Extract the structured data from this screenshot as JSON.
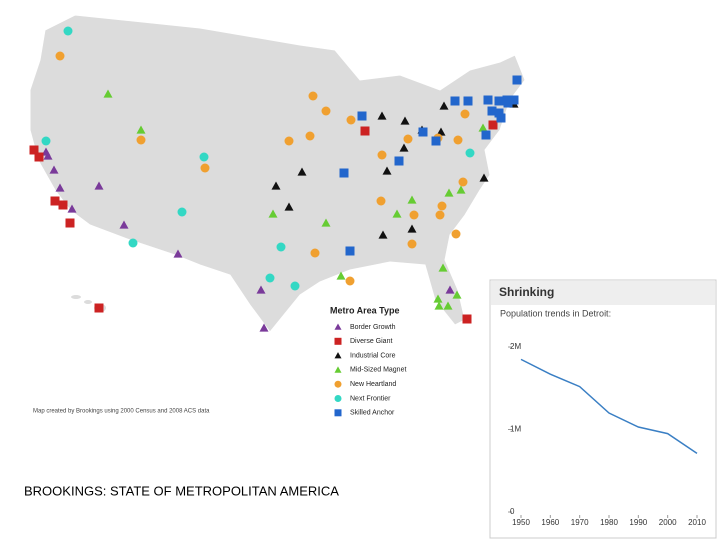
{
  "legend": {
    "title": "Metro Area Type",
    "items": [
      {
        "name": "Border Growth",
        "color": "#7a3a9a",
        "shape": "triangle"
      },
      {
        "name": "Diverse Giant",
        "color": "#cc2222",
        "shape": "square"
      },
      {
        "name": "Industrial Core",
        "color": "#111111",
        "shape": "triangle"
      },
      {
        "name": "Mid-Sized Magnet",
        "color": "#66cc33",
        "shape": "triangle"
      },
      {
        "name": "New Heartland",
        "color": "#f0a030",
        "shape": "circle"
      },
      {
        "name": "Next Frontier",
        "color": "#33d8c4",
        "shape": "circle"
      },
      {
        "name": "Skilled Anchor",
        "color": "#2266cc",
        "shape": "square"
      }
    ]
  },
  "source_note": "Map created by Brookings using 2000 Census and 2008 ACS data",
  "caption": "BROOKINGS: STATE OF METROPOLITAN AMERICA",
  "chart_data": {
    "type": "line",
    "title": "Shrinking",
    "subtitle": "Population trends in Detroit:",
    "x": [
      1950,
      1960,
      1970,
      1980,
      1990,
      2000,
      2010
    ],
    "series": [
      {
        "name": "Detroit",
        "color": "#3a7fc4",
        "values": [
          1850000,
          1670000,
          1520000,
          1200000,
          1030000,
          950000,
          710000
        ]
      }
    ],
    "xlim": [
      1950,
      2010
    ],
    "xticks": [
      1950,
      1960,
      1970,
      1980,
      1990,
      2000,
      2010
    ],
    "ylim": [
      0,
      2000000
    ],
    "yticks": [
      0,
      {
        "value": 1000000,
        "label": "1M"
      },
      {
        "value": 2000000,
        "label": "2M"
      }
    ],
    "grid": false
  }
}
